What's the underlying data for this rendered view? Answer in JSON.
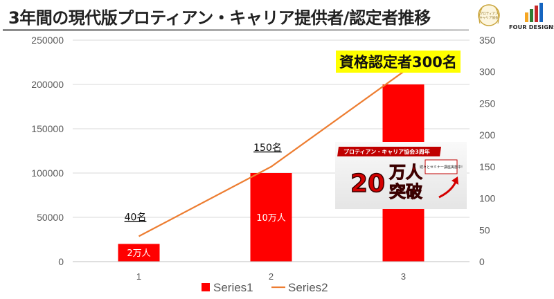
{
  "title": "3年間の現代版プロティアン・キャリア提供者/認定者推移",
  "brand": {
    "badge_text_line1": "プロティアン",
    "badge_text_line2": "キャリア協会",
    "name": "FOUR DESIGNS",
    "colors": [
      "#f5a623",
      "#2e7d32",
      "#c62828",
      "#1565c0"
    ]
  },
  "highlight": "資格認定者300名",
  "promo": {
    "header": "プロティアン・キャリア協会3周年",
    "number": "20",
    "unit": "万人",
    "word": "突破",
    "badge": "続々とセミナー講座実施中!",
    "colors": {
      "main": "#d40000",
      "bg": "#f1f1f1"
    }
  },
  "chart_data": {
    "type": "bar",
    "categories": [
      "1",
      "2",
      "3"
    ],
    "series": [
      {
        "name": "Series1",
        "type": "bar",
        "axis": "left",
        "values": [
          20000,
          100000,
          200000
        ],
        "color": "#ff0000"
      },
      {
        "name": "Series2",
        "type": "line",
        "axis": "right",
        "values": [
          40,
          150,
          300
        ],
        "color": "#ed7d31"
      }
    ],
    "y_left": {
      "min": 0,
      "max": 250000,
      "ticks": [
        "0",
        "50000",
        "100000",
        "150000",
        "200000",
        "250000"
      ]
    },
    "y_right": {
      "min": 0,
      "max": 350,
      "ticks": [
        "0",
        "50",
        "100",
        "150",
        "200",
        "250",
        "300",
        "350"
      ]
    },
    "bar_labels": [
      "2万人",
      "10万人",
      ""
    ],
    "line_labels": [
      "40名",
      "150名",
      ""
    ],
    "grid": true,
    "legend_position": "bottom"
  }
}
